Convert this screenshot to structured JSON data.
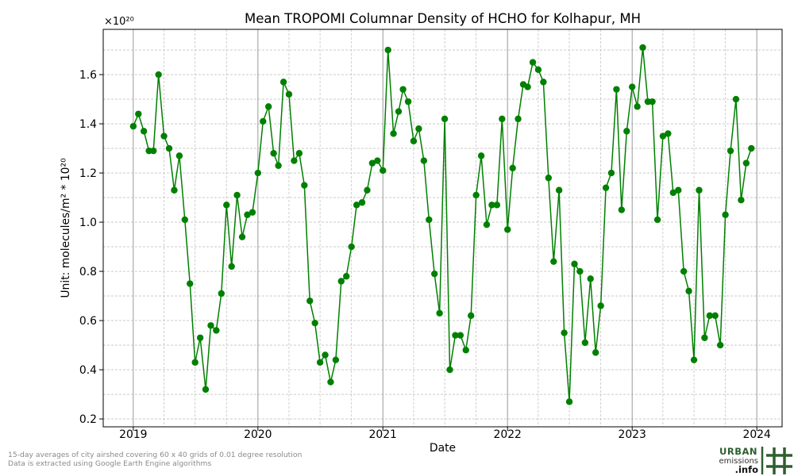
{
  "chart_data": {
    "type": "line",
    "title": "Mean TROPOMI Columnar Density of HCHO for Kolhapur, MH",
    "xlabel": "Date",
    "ylabel": "Unit: molecules/m² * 10²⁰",
    "y_offset_label": "×10²⁰",
    "x": [
      "2019-01-01",
      "2019-01-16",
      "2019-02-01",
      "2019-02-16",
      "2019-03-01",
      "2019-03-16",
      "2019-04-01",
      "2019-04-16",
      "2019-05-01",
      "2019-05-16",
      "2019-06-01",
      "2019-06-16",
      "2019-07-01",
      "2019-07-16",
      "2019-08-01",
      "2019-08-16",
      "2019-09-01",
      "2019-09-16",
      "2019-10-01",
      "2019-10-16",
      "2019-11-01",
      "2019-11-16",
      "2019-12-01",
      "2019-12-16",
      "2020-01-01",
      "2020-01-16",
      "2020-02-01",
      "2020-02-16",
      "2020-03-01",
      "2020-03-16",
      "2020-04-01",
      "2020-04-16",
      "2020-05-01",
      "2020-05-16",
      "2020-06-01",
      "2020-06-16",
      "2020-07-01",
      "2020-07-16",
      "2020-08-01",
      "2020-08-16",
      "2020-09-01",
      "2020-09-16",
      "2020-10-01",
      "2020-10-16",
      "2020-11-01",
      "2020-11-16",
      "2020-12-01",
      "2020-12-16",
      "2021-01-01",
      "2021-01-16",
      "2021-02-01",
      "2021-02-16",
      "2021-03-01",
      "2021-03-16",
      "2021-04-01",
      "2021-04-16",
      "2021-05-01",
      "2021-05-16",
      "2021-06-01",
      "2021-06-16",
      "2021-07-01",
      "2021-07-16",
      "2021-08-01",
      "2021-08-16",
      "2021-09-01",
      "2021-09-16",
      "2021-10-01",
      "2021-10-16",
      "2021-11-01",
      "2021-11-16",
      "2021-12-01",
      "2021-12-16",
      "2022-01-01",
      "2022-01-16",
      "2022-02-01",
      "2022-02-16",
      "2022-03-01",
      "2022-03-16",
      "2022-04-01",
      "2022-04-16",
      "2022-05-01",
      "2022-05-16",
      "2022-06-01",
      "2022-06-16",
      "2022-07-01",
      "2022-07-16",
      "2022-08-01",
      "2022-08-16",
      "2022-09-01",
      "2022-09-16",
      "2022-10-01",
      "2022-10-16",
      "2022-11-01",
      "2022-11-16",
      "2022-12-01",
      "2022-12-16",
      "2023-01-01",
      "2023-01-16",
      "2023-02-01",
      "2023-02-16",
      "2023-03-01",
      "2023-03-16",
      "2023-04-01",
      "2023-04-16",
      "2023-05-01",
      "2023-05-16",
      "2023-06-01",
      "2023-06-16",
      "2023-07-01",
      "2023-07-16",
      "2023-08-01",
      "2023-08-16",
      "2023-09-01",
      "2023-09-16",
      "2023-10-01",
      "2023-10-16",
      "2023-11-01",
      "2023-11-16",
      "2023-12-01",
      "2023-12-16"
    ],
    "series": [
      {
        "color": "#008000",
        "values": [
          1.39,
          1.44,
          1.37,
          1.29,
          1.29,
          1.6,
          1.35,
          1.3,
          1.13,
          1.27,
          1.01,
          0.75,
          0.43,
          0.53,
          0.32,
          0.58,
          0.56,
          0.71,
          1.07,
          0.82,
          1.11,
          0.94,
          1.03,
          1.04,
          1.2,
          1.41,
          1.47,
          1.28,
          1.23,
          1.57,
          1.52,
          1.25,
          1.28,
          1.15,
          0.68,
          0.59,
          0.43,
          0.46,
          0.35,
          0.44,
          0.76,
          0.78,
          0.9,
          1.07,
          1.08,
          1.13,
          1.24,
          1.25,
          1.21,
          1.7,
          1.36,
          1.45,
          1.54,
          1.49,
          1.33,
          1.38,
          1.25,
          1.01,
          0.79,
          0.63,
          1.42,
          0.4,
          0.54,
          0.54,
          0.48,
          0.62,
          1.11,
          1.27,
          0.99,
          1.07,
          1.07,
          1.42,
          0.97,
          1.22,
          1.42,
          1.56,
          1.55,
          1.65,
          1.62,
          1.57,
          1.18,
          0.84,
          1.13,
          0.55,
          0.27,
          0.83,
          0.8,
          0.51,
          0.77,
          0.47,
          0.66,
          1.14,
          1.2,
          1.54,
          1.05,
          1.37,
          1.55,
          1.47,
          1.71,
          1.49,
          1.49,
          1.01,
          1.35,
          1.36,
          1.12,
          1.13,
          0.8,
          0.72,
          0.44,
          1.13,
          0.53,
          0.62,
          0.62,
          0.5,
          1.03,
          1.29,
          1.5,
          1.09,
          1.24,
          1.3
        ]
      }
    ],
    "xlim": [
      "2018-10-05",
      "2024-03-15"
    ],
    "ylim": [
      0.168,
      1.784
    ],
    "xticks": [
      "2019-01-01",
      "2020-01-01",
      "2021-01-01",
      "2022-01-01",
      "2023-01-01",
      "2024-01-01"
    ],
    "xtick_labels": [
      "2019",
      "2020",
      "2021",
      "2022",
      "2023",
      "2024"
    ],
    "yticks": [
      0.2,
      0.4,
      0.6,
      0.8,
      1.0,
      1.2,
      1.4,
      1.6
    ],
    "ytick_labels": [
      "0.2",
      "0.4",
      "0.6",
      "0.8",
      "1.0",
      "1.2",
      "1.4",
      "1.6"
    ],
    "grid": true,
    "legend": "none"
  },
  "footer": {
    "note_line1": "15-day averages of city airshed covering 60 x 40 grids of 0.01 degree resolution",
    "note_line2": "Data is extracted using Google Earth Engine algorithms"
  },
  "logo": {
    "urban": "URBAN",
    "emissions": "emissions",
    "info": ".info",
    "color": "#2f5e2f"
  }
}
